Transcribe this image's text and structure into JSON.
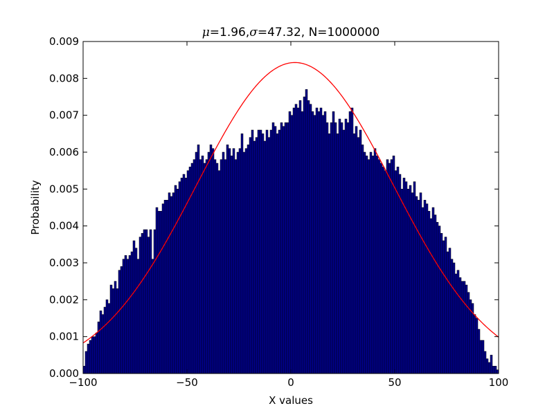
{
  "chart_data": {
    "type": "bar",
    "title": {
      "mu_symbol": "μ",
      "mu_value": "=1.96,",
      "sigma_symbol": "σ",
      "sigma_value": "=47.32, N=1000000"
    },
    "xlabel": "X values",
    "ylabel": "Probability",
    "xlim": [
      -100,
      100
    ],
    "ylim": [
      0,
      0.009
    ],
    "x_ticks": [
      -100,
      -50,
      0,
      50,
      100
    ],
    "x_tick_labels": [
      "−100",
      "−50",
      "0",
      "50",
      "100"
    ],
    "y_ticks": [
      0,
      0.001,
      0.002,
      0.003,
      0.004,
      0.005,
      0.006,
      0.007,
      0.008,
      0.009
    ],
    "y_tick_labels": [
      "0.000",
      "0.001",
      "0.002",
      "0.003",
      "0.004",
      "0.005",
      "0.006",
      "0.007",
      "0.008",
      "0.009"
    ],
    "histogram": {
      "bin_start": -100,
      "bin_width": 1,
      "color": "#00008b",
      "edge_color": "#000000",
      "values": [
        0.0002,
        0.0006,
        0.0008,
        0.0009,
        0.001,
        0.001,
        0.0011,
        0.0014,
        0.0017,
        0.0016,
        0.0018,
        0.002,
        0.0019,
        0.0024,
        0.0023,
        0.0025,
        0.0023,
        0.0028,
        0.0029,
        0.0031,
        0.0032,
        0.0031,
        0.0032,
        0.0033,
        0.0036,
        0.0034,
        0.0031,
        0.0037,
        0.0038,
        0.0039,
        0.0039,
        0.0037,
        0.0039,
        0.0031,
        0.0039,
        0.0045,
        0.0044,
        0.0044,
        0.0046,
        0.0047,
        0.0047,
        0.0049,
        0.0048,
        0.0049,
        0.0051,
        0.005,
        0.0052,
        0.0053,
        0.0054,
        0.0053,
        0.0055,
        0.0056,
        0.0057,
        0.0058,
        0.006,
        0.0062,
        0.0058,
        0.0059,
        0.0057,
        0.0058,
        0.006,
        0.0062,
        0.0061,
        0.0058,
        0.0057,
        0.0055,
        0.0058,
        0.006,
        0.0058,
        0.0062,
        0.0061,
        0.0059,
        0.0061,
        0.0058,
        0.006,
        0.0061,
        0.0065,
        0.006,
        0.0061,
        0.0062,
        0.0064,
        0.0066,
        0.0063,
        0.0064,
        0.0066,
        0.0066,
        0.0065,
        0.0063,
        0.0066,
        0.0064,
        0.0066,
        0.0068,
        0.0067,
        0.0065,
        0.0066,
        0.0068,
        0.0067,
        0.0068,
        0.0068,
        0.0071,
        0.007,
        0.0072,
        0.0073,
        0.0072,
        0.0074,
        0.0071,
        0.0075,
        0.0077,
        0.0074,
        0.0073,
        0.0071,
        0.007,
        0.0072,
        0.0071,
        0.0072,
        0.007,
        0.0071,
        0.0068,
        0.0065,
        0.0068,
        0.0071,
        0.0068,
        0.0065,
        0.0069,
        0.0068,
        0.0066,
        0.0069,
        0.0068,
        0.0071,
        0.0072,
        0.0065,
        0.0067,
        0.0064,
        0.0066,
        0.0062,
        0.006,
        0.0059,
        0.0058,
        0.006,
        0.0059,
        0.0061,
        0.0059,
        0.0058,
        0.0057,
        0.0056,
        0.0055,
        0.0058,
        0.0057,
        0.0058,
        0.0059,
        0.0055,
        0.0056,
        0.0054,
        0.005,
        0.0053,
        0.0052,
        0.005,
        0.0051,
        0.0049,
        0.0052,
        0.0048,
        0.0047,
        0.0049,
        0.0045,
        0.0047,
        0.0046,
        0.0044,
        0.0042,
        0.0045,
        0.0043,
        0.0041,
        0.004,
        0.0038,
        0.0036,
        0.0037,
        0.0033,
        0.0034,
        0.0031,
        0.003,
        0.0027,
        0.0028,
        0.0026,
        0.0025,
        0.0025,
        0.0024,
        0.0022,
        0.002,
        0.0019,
        0.0016,
        0.0015,
        0.0012,
        0.0009,
        0.0009,
        0.0006,
        0.0004,
        0.0003,
        0.0005,
        0.0002,
        0.0002,
        0.0001
      ]
    },
    "normal_curve": {
      "mean": 1.96,
      "std": 47.32,
      "peak": 0.00843,
      "color": "#ff0000"
    },
    "grid": false,
    "legend": "none"
  }
}
